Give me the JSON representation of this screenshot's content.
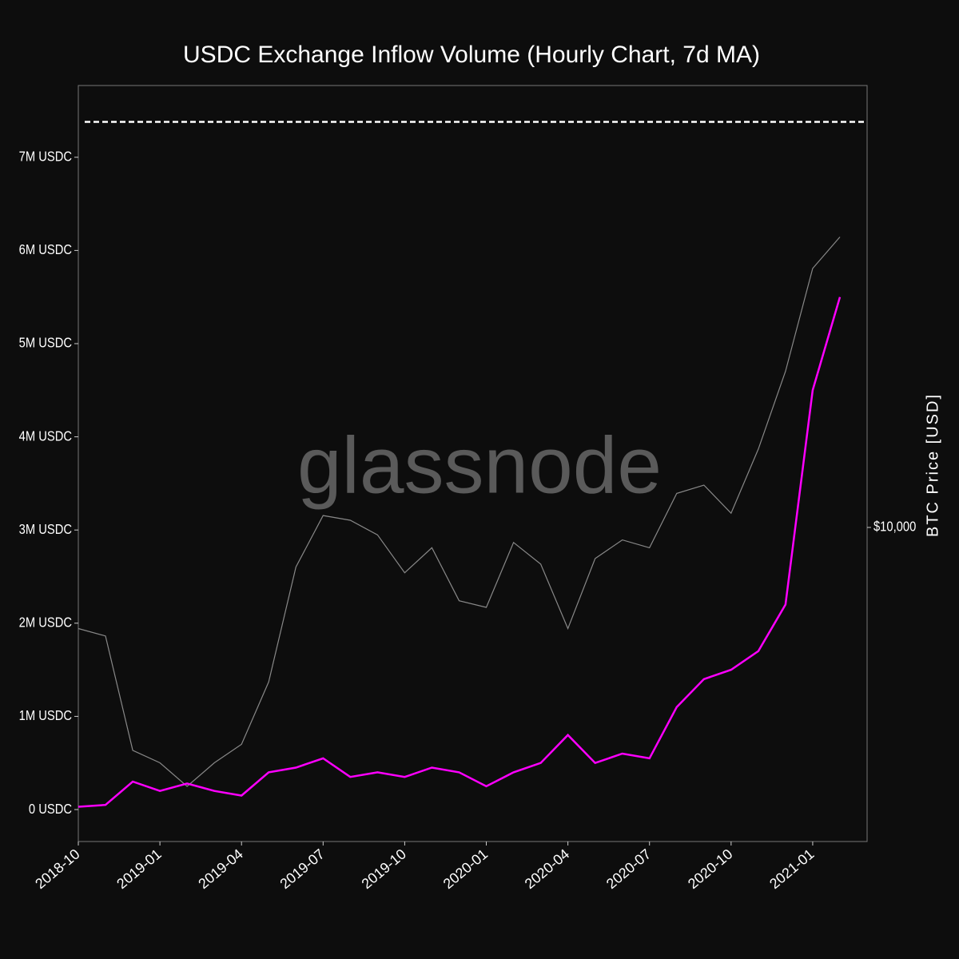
{
  "chart_data": {
    "type": "line",
    "title": "USDC Exchange Inflow Volume (Hourly Chart, 7d MA)",
    "watermark": "glassnode",
    "y2label": "BTC Price [USD]",
    "x": [
      "2018-10",
      "2018-11",
      "2018-12",
      "2019-01",
      "2019-02",
      "2019-03",
      "2019-04",
      "2019-05",
      "2019-06",
      "2019-07",
      "2019-08",
      "2019-09",
      "2019-10",
      "2019-11",
      "2019-12",
      "2020-01",
      "2020-02",
      "2020-03",
      "2020-04",
      "2020-05",
      "2020-06",
      "2020-07",
      "2020-08",
      "2020-09",
      "2020-10",
      "2020-11",
      "2020-12",
      "2021-01",
      "2021-02"
    ],
    "xlim": [
      "2018-10",
      "2021-03"
    ],
    "xticks": [
      "2018-10",
      "2019-01",
      "2019-04",
      "2019-07",
      "2019-10",
      "2020-01",
      "2020-04",
      "2020-07",
      "2020-10",
      "2021-01"
    ],
    "series": [
      {
        "color": "#888888",
        "axis": "y2",
        "values": [
          6600,
          6400,
          4000,
          3800,
          3450,
          3800,
          4100,
          5300,
          8500,
          10500,
          10300,
          9700,
          8300,
          9200,
          7400,
          7200,
          9400,
          8600,
          6600,
          8800,
          9500,
          9200,
          11500,
          11900,
          10600,
          13800,
          19000,
          29000,
          33000
        ]
      },
      {
        "color": "#ff00ff",
        "values": [
          30000,
          50000,
          300000,
          200000,
          280000,
          200000,
          150000,
          400000,
          450000,
          550000,
          350000,
          400000,
          350000,
          450000,
          400000,
          250000,
          400000,
          500000,
          800000,
          500000,
          600000,
          550000,
          1100000,
          1400000,
          1500000,
          1700000,
          2200000,
          4500000,
          5500000
        ]
      }
    ],
    "ylim": [
      -343000,
      7770000
    ],
    "yticks": [
      {
        "value": 0,
        "label": "0 USDC"
      },
      {
        "value": 1000000,
        "label": "1M USDC"
      },
      {
        "value": 2000000,
        "label": "2M USDC"
      },
      {
        "value": 3000000,
        "label": "3M USDC"
      },
      {
        "value": 4000000,
        "label": "4M USDC"
      },
      {
        "value": 5000000,
        "label": "5M USDC"
      },
      {
        "value": 6000000,
        "label": "6M USDC"
      },
      {
        "value": 7000000,
        "label": "7M USDC"
      }
    ],
    "y2lim": [
      2750,
      61500
    ],
    "y2log": true,
    "y2ticks": [
      {
        "value": 10000,
        "label": "$10,000"
      }
    ],
    "hline": {
      "value": 7380000,
      "color": "#ffffff",
      "style": "dashed"
    }
  }
}
